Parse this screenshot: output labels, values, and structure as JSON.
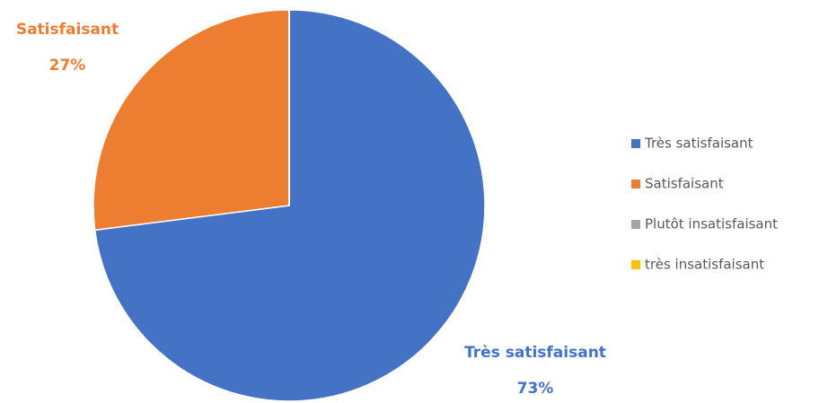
{
  "chart_data": {
    "type": "pie",
    "categories": [
      "Très satisfaisant",
      "Satisfaisant",
      "Plutôt insatisfaisant",
      "très insatisfaisant"
    ],
    "values": [
      73,
      27,
      0,
      0
    ],
    "value_labels": [
      "73%",
      "27%",
      null,
      null
    ],
    "colors": [
      "#4472c4",
      "#ed7d31",
      "#a5a5a5",
      "#ffc000"
    ],
    "legend": "right"
  }
}
